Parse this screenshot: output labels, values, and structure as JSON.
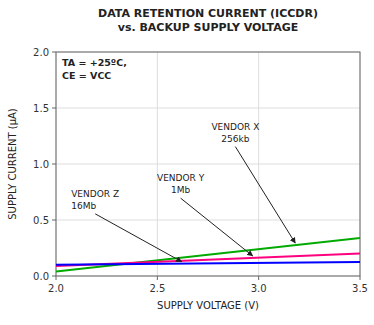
{
  "chart_data": {
    "type": "line",
    "title": "DATA RETENTION CURRENT (ICCDR)\nvs. BACKUP SUPPLY VOLTAGE",
    "x_label": "SUPPLY VOLTAGE (V)",
    "y_label": "SUPPLY CURRENT (μA)",
    "x": [
      2.0,
      3.5
    ],
    "series": [
      {
        "color": "#00aa00",
        "values": [
          0.04,
          0.34
        ]
      },
      {
        "color": "#ff007f",
        "values": [
          0.09,
          0.2
        ]
      },
      {
        "color": "#0000ff",
        "values": [
          0.1,
          0.125
        ]
      }
    ],
    "xlim": [
      2.0,
      3.5
    ],
    "ylim": [
      0.0,
      2.0
    ],
    "xticks": [
      {
        "value": 2.0,
        "label": "2.0"
      },
      2.5,
      {
        "value": 3.0,
        "label": "3.0"
      },
      3.5
    ],
    "yticks": [
      {
        "value": 0.0,
        "label": "0.0"
      },
      0.5,
      {
        "value": 1.0,
        "label": "1.0"
      },
      1.5,
      {
        "value": 2.0,
        "label": "2.0"
      }
    ],
    "grid": true,
    "annotations": [
      "TA = +25ºC,\nCE = VCC",
      "VENDOR X\n256kb",
      "VENDOR Y\n1Mb",
      "VENDOR Z\n16Mb"
    ]
  }
}
